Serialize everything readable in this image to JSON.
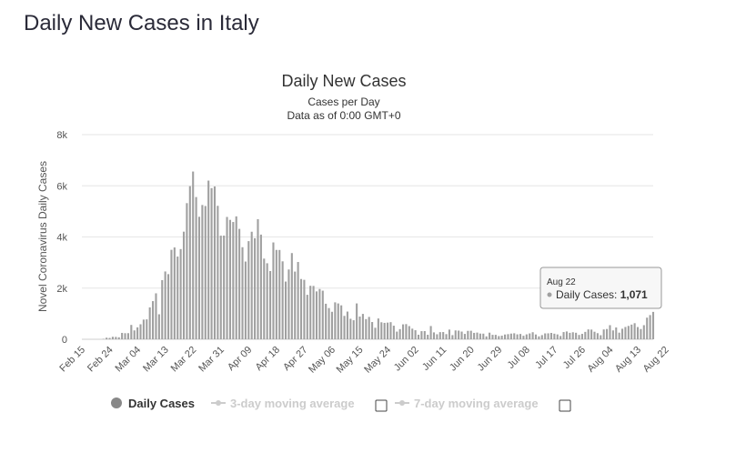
{
  "page": {
    "title": "Daily New Cases in Italy"
  },
  "chart_data": {
    "type": "bar",
    "title": "Daily New Cases",
    "subtitle": "Cases per Day",
    "subtitle2": "Data as of 0:00 GMT+0",
    "ylabel": "Novel Coronavirus Daily Cases",
    "xlabel": "",
    "ylim": [
      0,
      8000
    ],
    "yticks": [
      0,
      2000,
      4000,
      6000,
      8000
    ],
    "ytick_labels": [
      "0",
      "2k",
      "4k",
      "6k",
      "8k"
    ],
    "start_date": "Feb 15",
    "xtick_labels": [
      "Feb 15",
      "Feb 24",
      "Mar 04",
      "Mar 13",
      "Mar 22",
      "Mar 31",
      "Apr 09",
      "Apr 18",
      "Apr 27",
      "May 06",
      "May 15",
      "May 24",
      "Jun 02",
      "Jun 11",
      "Jun 20",
      "Jun 29",
      "Jul 08",
      "Jul 17",
      "Jul 26",
      "Aug 04",
      "Aug 13",
      "Aug 22"
    ],
    "grid": true,
    "series": [
      {
        "name": "Daily Cases",
        "color": "#a0a0a0",
        "values": [
          0,
          0,
          0,
          0,
          0,
          0,
          0,
          14,
          62,
          53,
          97,
          93,
          78,
          250,
          238,
          240,
          561,
          347,
          466,
          587,
          769,
          778,
          1247,
          1492,
          1797,
          977,
          2313,
          2651,
          2547,
          3497,
          3590,
          3233,
          3526,
          4207,
          5322,
          5986,
          6557,
          5560,
          4789,
          5249,
          5210,
          6203,
          5909,
          5974,
          5217,
          4050,
          4053,
          4782,
          4668,
          4585,
          4805,
          4316,
          3599,
          3039,
          3836,
          4204,
          3951,
          4694,
          4092,
          3153,
          2972,
          2667,
          3786,
          3493,
          3491,
          3047,
          2256,
          2729,
          3370,
          2646,
          3021,
          2357,
          2324,
          1739,
          2091,
          2086,
          1872,
          1965,
          1900,
          1389,
          1221,
          1075,
          1444,
          1401,
          1327,
          915,
          1083,
          802,
          744,
          1402,
          888,
          992,
          789,
          875,
          675,
          451,
          813,
          665,
          642,
          652,
          669,
          531,
          300,
          397,
          584,
          593,
          516,
          416,
          355,
          178,
          318,
          321,
          177,
          518,
          270,
          197,
          280,
          283,
          202,
          379,
          163,
          346,
          338,
          301,
          210,
          329,
          333,
          251,
          262,
          224,
          221,
          113,
          259,
          175,
          174,
          126,
          142,
          187,
          201,
          223,
          235,
          192,
          208,
          138,
          193,
          229,
          276,
          188,
          114,
          163,
          230,
          233,
          249,
          219,
          190,
          129,
          282,
          306,
          252,
          275,
          255,
          170,
          212,
          289,
          386,
          379,
          295,
          239,
          159,
          384,
          402,
          552,
          347,
          463,
          259,
          412,
          481,
          523,
          574,
          629,
          479,
          401,
          552,
          845,
          947,
          1071
        ]
      },
      {
        "name": "3-day moving average",
        "color": "#cccccc"
      },
      {
        "name": "7-day moving average",
        "color": "#cccccc"
      }
    ],
    "tooltip": {
      "date": "Aug 22",
      "label": "Daily Cases:",
      "value": "1,071"
    }
  }
}
